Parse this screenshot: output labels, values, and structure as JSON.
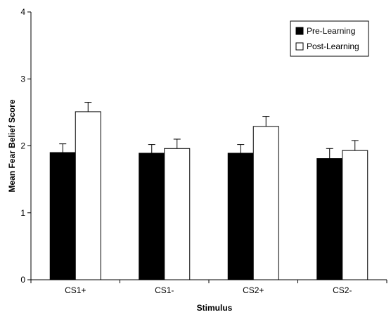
{
  "chart_data": {
    "type": "bar",
    "title": "",
    "xlabel": "Stimulus",
    "ylabel": "Mean Fear Belief Score",
    "categories": [
      "CS1+",
      "CS1-",
      "CS2+",
      "CS2-"
    ],
    "ylim": [
      0,
      4
    ],
    "yticks": [
      "0",
      "1",
      "2",
      "3",
      "4"
    ],
    "grid": false,
    "legend_position": "top-right",
    "series": [
      {
        "name": "Pre-Learning",
        "values": [
          1.9,
          1.89,
          1.89,
          1.81
        ],
        "errors": [
          0.13,
          0.13,
          0.13,
          0.15
        ],
        "color": "#000000"
      },
      {
        "name": "Post-Learning",
        "values": [
          2.51,
          1.96,
          2.29,
          1.93
        ],
        "errors": [
          0.14,
          0.14,
          0.15,
          0.15
        ],
        "color": "#ffffff"
      }
    ]
  }
}
